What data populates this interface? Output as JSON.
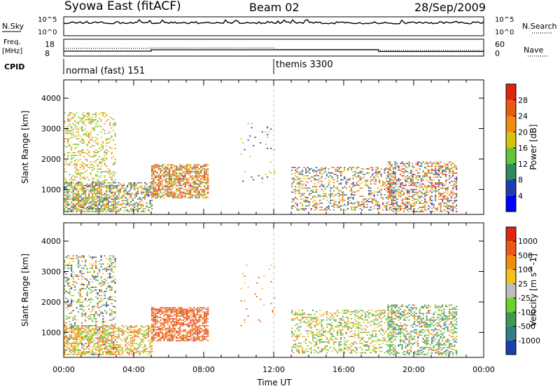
{
  "header": {
    "title": "Syowa East (fitACF)",
    "beam": "Beam 02",
    "date": "28/Sep/2009"
  },
  "status_panels": {
    "nsky_label": "N.Sky",
    "nsearch_label": "N.Search",
    "freq_label_line1": "Freq.",
    "freq_label_line2": "[MHz]",
    "nave_label": "Nave",
    "cpid_label": "CPID",
    "left_ticks_top": [
      "10^5",
      "10^0"
    ],
    "right_ticks_top": [
      "10^5",
      "10^0"
    ],
    "left_ticks_freq": [
      "18",
      "8"
    ],
    "right_ticks_nave": [
      "60",
      "0"
    ],
    "cpid_segments": [
      {
        "label": "normal (fast) 151",
        "start_hour": 0,
        "end_hour": 12
      },
      {
        "label": "themis 3300",
        "start_hour": 12,
        "end_hour": 24
      }
    ]
  },
  "chart_data": [
    {
      "type": "heatmap",
      "title": "",
      "xlabel": "",
      "ylabel": "Slant Range [km]",
      "x_tick_labels": [
        "00:00",
        "04:00",
        "08:00",
        "12:00",
        "16:00",
        "20:00",
        "00:00"
      ],
      "y_tick_labels": [
        "1000",
        "2000",
        "3000",
        "4000"
      ],
      "y_ticks": [
        1000,
        2000,
        3000,
        4000
      ],
      "xlim": [
        0,
        24
      ],
      "ylim": [
        180,
        4600
      ],
      "colorbar": {
        "label": "Power [dB]",
        "tick_labels": [
          "4",
          "8",
          "12",
          "16",
          "20",
          "24",
          "28"
        ],
        "colors": [
          "#0000ff",
          "#1c3fb0",
          "#2f8c5a",
          "#62c43a",
          "#d6c10e",
          "#f08a10",
          "#e85a12",
          "#e02410"
        ]
      },
      "echo_regions": [
        {
          "t0": 0.0,
          "t1": 3.0,
          "r0": 250,
          "r1": 3500,
          "density": 0.28,
          "colors": [
            3,
            4,
            5
          ]
        },
        {
          "t0": 0.0,
          "t1": 5.0,
          "r0": 250,
          "r1": 1200,
          "density": 0.55,
          "colors": [
            1,
            2,
            3,
            4,
            5,
            6
          ]
        },
        {
          "t0": 5.0,
          "t1": 8.2,
          "r0": 700,
          "r1": 1800,
          "density": 0.7,
          "colors": [
            2,
            4,
            5,
            6,
            7
          ]
        },
        {
          "t0": 13.0,
          "t1": 19.0,
          "r0": 300,
          "r1": 1700,
          "density": 0.35,
          "colors": [
            1,
            2,
            4,
            5,
            6
          ]
        },
        {
          "t0": 18.5,
          "t1": 22.5,
          "r0": 250,
          "r1": 1900,
          "density": 0.45,
          "colors": [
            1,
            2,
            4,
            5,
            6,
            7
          ]
        },
        {
          "t0": 10.0,
          "t1": 12.0,
          "r0": 1200,
          "r1": 3200,
          "density": 0.04,
          "colors": [
            1,
            4
          ]
        }
      ]
    },
    {
      "type": "heatmap",
      "title": "",
      "xlabel": "Time UT",
      "ylabel": "Slant Range [km]",
      "x_tick_labels": [
        "00:00",
        "04:00",
        "08:00",
        "12:00",
        "16:00",
        "20:00",
        "00:00"
      ],
      "y_tick_labels": [
        "1000",
        "2000",
        "3000",
        "4000"
      ],
      "y_ticks": [
        1000,
        2000,
        3000,
        4000
      ],
      "xlim": [
        0,
        24
      ],
      "ylim": [
        180,
        4600
      ],
      "colorbar": {
        "label": "Velocity [m s^-1]",
        "tick_labels": [
          "1000",
          "500",
          "100",
          "25",
          "-25",
          "-100",
          "-500",
          "-1000"
        ],
        "colors": [
          "#1c3fb0",
          "#2f7f86",
          "#3f9a50",
          "#6ccf2e",
          "#bdbdbd",
          "#f2c21a",
          "#f08a10",
          "#e85a12",
          "#e02410"
        ]
      },
      "echo_regions": [
        {
          "t0": 0.0,
          "t1": 3.0,
          "r0": 250,
          "r1": 3500,
          "density": 0.28,
          "colors": [
            0,
            2,
            3,
            5,
            7
          ]
        },
        {
          "t0": 0.0,
          "t1": 5.0,
          "r0": 250,
          "r1": 1200,
          "density": 0.55,
          "colors": [
            3,
            5,
            6,
            7
          ]
        },
        {
          "t0": 5.0,
          "t1": 8.2,
          "r0": 700,
          "r1": 1800,
          "density": 0.7,
          "colors": [
            6,
            7,
            8
          ]
        },
        {
          "t0": 13.0,
          "t1": 19.0,
          "r0": 300,
          "r1": 1700,
          "density": 0.35,
          "colors": [
            2,
            3,
            5,
            6
          ]
        },
        {
          "t0": 18.5,
          "t1": 22.5,
          "r0": 250,
          "r1": 1900,
          "density": 0.45,
          "colors": [
            1,
            2,
            3,
            6
          ]
        },
        {
          "t0": 10.0,
          "t1": 12.0,
          "r0": 1200,
          "r1": 3200,
          "density": 0.04,
          "colors": [
            5,
            7
          ]
        }
      ]
    }
  ]
}
